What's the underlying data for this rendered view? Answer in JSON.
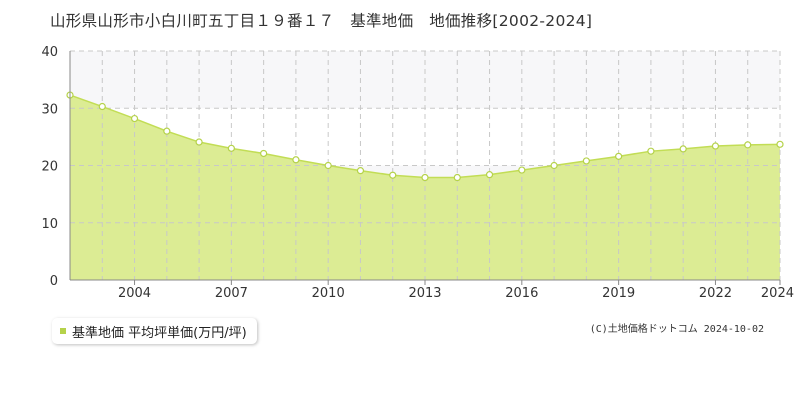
{
  "title": "山形県山形市小白川町五丁目１９番１７　基準地価　地価推移[2002-2024]",
  "copyright": "(C)土地価格ドットコム 2024-10-02",
  "colors": {
    "fill": "#dcec94",
    "line": "#c2dd55",
    "marker_fill": "#ffffff",
    "marker_stroke": "#b5d24a",
    "band": "#f7f7f9",
    "grid": "#c8c8c8",
    "axis": "#888888"
  },
  "legend": {
    "label": "基準地価 平均坪単価(万円/坪)",
    "swatch_color": "#b5d24a"
  },
  "chart_data": {
    "type": "area",
    "x": [
      2002,
      2003,
      2004,
      2005,
      2006,
      2007,
      2008,
      2009,
      2010,
      2011,
      2012,
      2013,
      2014,
      2015,
      2016,
      2017,
      2018,
      2019,
      2020,
      2021,
      2022,
      2023,
      2024
    ],
    "series": [
      {
        "name": "基準地価 平均坪単価(万円/坪)",
        "values": [
          32.3,
          30.3,
          28.2,
          26.0,
          24.1,
          23.0,
          22.1,
          21.0,
          20.0,
          19.1,
          18.3,
          17.9,
          17.9,
          18.4,
          19.2,
          20.0,
          20.8,
          21.6,
          22.5,
          22.9,
          23.4,
          23.6,
          23.7
        ]
      }
    ],
    "ylim": [
      0,
      40
    ],
    "yticks": [
      0,
      10,
      20,
      30,
      40
    ],
    "xticks": [
      2004,
      2007,
      2010,
      2013,
      2016,
      2019,
      2022,
      2024
    ],
    "xlim": [
      2002,
      2024
    ],
    "grid": true
  }
}
